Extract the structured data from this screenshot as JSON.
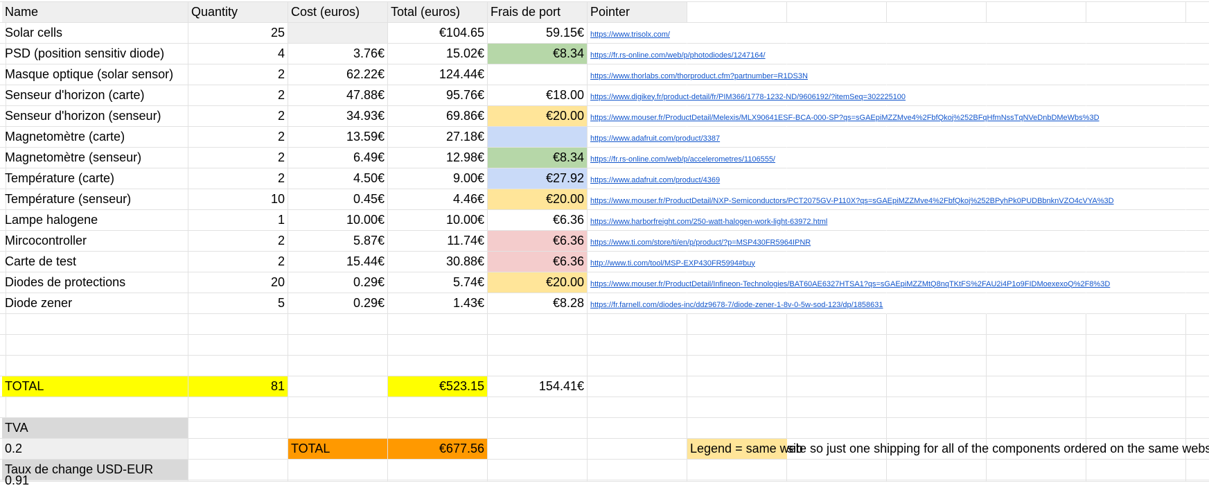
{
  "columns": [
    "Name",
    "Quantity",
    "Cost (euros)",
    "Total (euros)",
    "Frais de port",
    "Pointer"
  ],
  "items": [
    {
      "name": "Solar cells",
      "qty": "25",
      "cost": "",
      "total": "€104.65",
      "shipping": "59.15€",
      "url": "https://www.trisolx.com/"
    },
    {
      "name": "PSD (position sensitiv diode)",
      "qty": "4",
      "cost": "3.76€",
      "total": "15.02€",
      "shipping": "€8.34",
      "url": "https://fr.rs-online.com/web/p/photodiodes/1247164/"
    },
    {
      "name": "Masque optique (solar sensor)",
      "qty": "2",
      "cost": "62.22€",
      "total": "124.44€",
      "shipping": "",
      "url": "https://www.thorlabs.com/thorproduct.cfm?partnumber=R1DS3N"
    },
    {
      "name": "Senseur d'horizon (carte)",
      "qty": "2",
      "cost": "47.88€",
      "total": "95.76€",
      "shipping": "€18.00",
      "url": "https://www.digikey.fr/product-detail/fr/PIM366/1778-1232-ND/9606192/?itemSeq=302225100"
    },
    {
      "name": "Senseur d'horizon (senseur)",
      "qty": "2",
      "cost": "34.93€",
      "total": "69.86€",
      "shipping": "€20.00",
      "url": "https://www.mouser.fr/ProductDetail/Melexis/MLX90641ESF-BCA-000-SP?qs=sGAEpiMZZMve4%2FbfQkoj%252BFqHfmNssTqNVeDnbDMeWbs%3D"
    },
    {
      "name": "Magnetomètre (carte)",
      "qty": "2",
      "cost": "13.59€",
      "total": "27.18€",
      "shipping": "",
      "url": "https://www.adafruit.com/product/3387"
    },
    {
      "name": "Magnetomètre (senseur)",
      "qty": "2",
      "cost": "6.49€",
      "total": "12.98€",
      "shipping": "€8.34",
      "url": "https://fr.rs-online.com/web/p/accelerometres/1106555/"
    },
    {
      "name": "Température (carte)",
      "qty": "2",
      "cost": "4.50€",
      "total": "9.00€",
      "shipping": "€27.92",
      "url": "https://www.adafruit.com/product/4369"
    },
    {
      "name": "Température (senseur)",
      "qty": "10",
      "cost": "0.45€",
      "total": "4.46€",
      "shipping": "€20.00",
      "url": "https://www.mouser.fr/ProductDetail/NXP-Semiconductors/PCT2075GV-P110X?qs=sGAEpiMZZMve4%2FbfQkoj%252BPyhPk0PUDBbnknVZO4cVYA%3D"
    },
    {
      "name": "Lampe halogene",
      "qty": "1",
      "cost": "10.00€",
      "total": "10.00€",
      "shipping": "€6.36",
      "url": "https://www.harborfreight.com/250-watt-halogen-work-light-63972.html"
    },
    {
      "name": "Mircocontroller",
      "qty": "2",
      "cost": "5.87€",
      "total": "11.74€",
      "shipping": "€6.36",
      "url": "https://www.ti.com/store/ti/en/p/product/?p=MSP430FR5964IPNR"
    },
    {
      "name": "Carte de test",
      "qty": "2",
      "cost": "15.44€",
      "total": "30.88€",
      "shipping": "€6.36",
      "url": "http://www.ti.com/tool/MSP-EXP430FR5994#buy"
    },
    {
      "name": "Diodes de protections",
      "qty": "20",
      "cost": "0.29€",
      "total": "5.74€",
      "shipping": "€20.00",
      "url": "https://www.mouser.fr/ProductDetail/Infineon-Technologies/BAT60AE6327HTSA1?qs=sGAEpiMZZMtQ8nqTKtFS%2FAU2i4P1o9FIDMoexexoQ%2F8%3D"
    },
    {
      "name": "Diode zener",
      "qty": "5",
      "cost": "0.29€",
      "total": "1.43€",
      "shipping": "€8.28",
      "url": "https://fr.farnell.com/diodes-inc/ddz9678-7/diode-zener-1-8v-0-5w-sod-123/dp/1858631"
    }
  ],
  "totals": {
    "label": "TOTAL",
    "qty": "81",
    "total": "€523.15",
    "shipping": "154.41€"
  },
  "tva": {
    "label": "TVA",
    "value": "0.2"
  },
  "grand_total": {
    "label": "TOTAL",
    "value": "€677.56"
  },
  "legend": {
    "part1": "Legend = same web",
    "part2": "site so just one shipping for all of the components ordered on the same website"
  },
  "exchange": {
    "label": "Taux de change USD-EUR",
    "value": "0.91"
  },
  "colors": {
    "shipping_green": "#b6d7a8",
    "shipping_orange": "#ffe599",
    "shipping_blue": "#c9daf8",
    "shipping_red": "#f4cccc",
    "total_yellow": "#ffff00",
    "grand_total_orange": "#ff9900",
    "header_gray": "#efefef",
    "link_blue": "#1155cc"
  }
}
